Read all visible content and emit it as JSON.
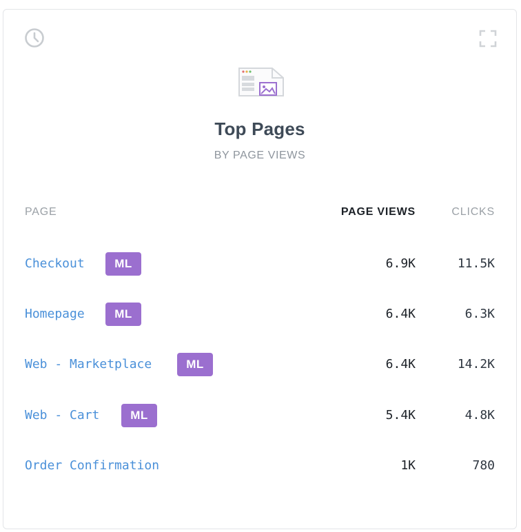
{
  "header": {
    "title": "Top Pages",
    "subtitle": "BY PAGE VIEWS",
    "left_icon": "clock-icon",
    "right_icon": "expand-icon",
    "illustration": "pages-icon"
  },
  "table": {
    "columns": {
      "page": "PAGE",
      "page_views": "PAGE VIEWS",
      "clicks": "CLICKS"
    },
    "sort_column": "page_views",
    "rows": [
      {
        "page": "Checkout",
        "badge": "ML",
        "page_views": "6.9K",
        "clicks": "11.5K"
      },
      {
        "page": "Homepage",
        "badge": "ML",
        "page_views": "6.4K",
        "clicks": "6.3K"
      },
      {
        "page": "Web - Marketplace",
        "badge": "ML",
        "page_views": "6.4K",
        "clicks": "14.2K"
      },
      {
        "page": "Web - Cart",
        "badge": "ML",
        "page_views": "5.4K",
        "clicks": "4.8K"
      },
      {
        "page": "Order Confirmation",
        "badge": "",
        "page_views": "1K",
        "clicks": "780"
      }
    ]
  },
  "colors": {
    "link": "#4a90d9",
    "badge": "#9b6fcf",
    "title": "#3e4a57",
    "muted": "#9aa0a6"
  }
}
